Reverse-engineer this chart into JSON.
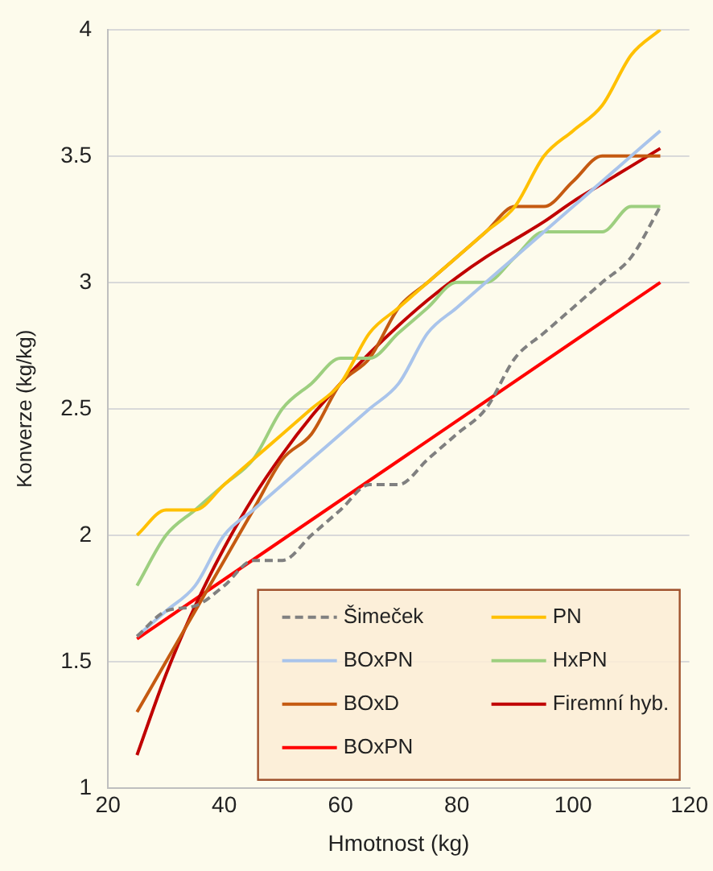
{
  "chart_data": {
    "type": "line",
    "xlabel": "Hmotnost (kg)",
    "ylabel": "Konverze (kg/kg)",
    "x": [
      25,
      30,
      35,
      40,
      45,
      50,
      55,
      60,
      65,
      70,
      75,
      80,
      85,
      90,
      95,
      100,
      105,
      110,
      115
    ],
    "xlim": [
      20,
      120
    ],
    "xticks": [
      20,
      40,
      60,
      80,
      100,
      120
    ],
    "ylim": [
      1,
      4
    ],
    "yticks": [
      1,
      1.5,
      2,
      2.5,
      3,
      3.5,
      4
    ],
    "grid": "y",
    "legend": "bottom right",
    "series": [
      {
        "name": "Šimeček",
        "color": "#808080",
        "line_style": "dashed",
        "values": [
          1.6,
          1.7,
          1.72,
          1.8,
          1.9,
          1.9,
          2.0,
          2.1,
          2.2,
          2.2,
          2.3,
          2.4,
          2.5,
          2.7,
          2.8,
          2.9,
          3.0,
          3.1,
          3.3
        ]
      },
      {
        "name": "PN",
        "color": "#ffc000",
        "values": [
          2.0,
          2.1,
          2.1,
          2.2,
          2.3,
          2.4,
          2.5,
          2.6,
          2.8,
          2.9,
          3.0,
          3.1,
          3.2,
          3.3,
          3.5,
          3.6,
          3.7,
          3.9,
          4.0
        ]
      },
      {
        "name": "BOxPN",
        "color": "#a9c4eb",
        "values": [
          1.6,
          1.7,
          1.8,
          2.0,
          2.1,
          2.2,
          2.3,
          2.4,
          2.5,
          2.6,
          2.8,
          2.9,
          3.0,
          3.1,
          3.2,
          3.3,
          3.4,
          3.5,
          3.6
        ]
      },
      {
        "name": "HxPN",
        "color": "#9dcf7f",
        "values": [
          1.8,
          2.0,
          2.1,
          2.2,
          2.3,
          2.5,
          2.6,
          2.7,
          2.7,
          2.8,
          2.9,
          3.0,
          3.0,
          3.1,
          3.2,
          3.2,
          3.2,
          3.3,
          3.3
        ]
      },
      {
        "name": "BOxD",
        "color": "#c55a11",
        "values": [
          1.3,
          1.5,
          1.7,
          1.9,
          2.1,
          2.3,
          2.4,
          2.6,
          2.7,
          2.9,
          3.0,
          3.1,
          3.2,
          3.3,
          3.3,
          3.4,
          3.5,
          3.5,
          3.5
        ]
      },
      {
        "name": "Firemní hyb.",
        "color": "#c00000",
        "values": [
          1.13,
          1.45,
          1.72,
          1.95,
          2.15,
          2.32,
          2.47,
          2.6,
          2.72,
          2.83,
          2.93,
          3.02,
          3.1,
          3.17,
          3.24,
          3.32,
          3.39,
          3.46,
          3.53
        ]
      },
      {
        "name": "BOxPN",
        "color": "#ff0000",
        "x": [
          25,
          115
        ],
        "values": [
          1.59,
          3.0
        ]
      }
    ]
  }
}
